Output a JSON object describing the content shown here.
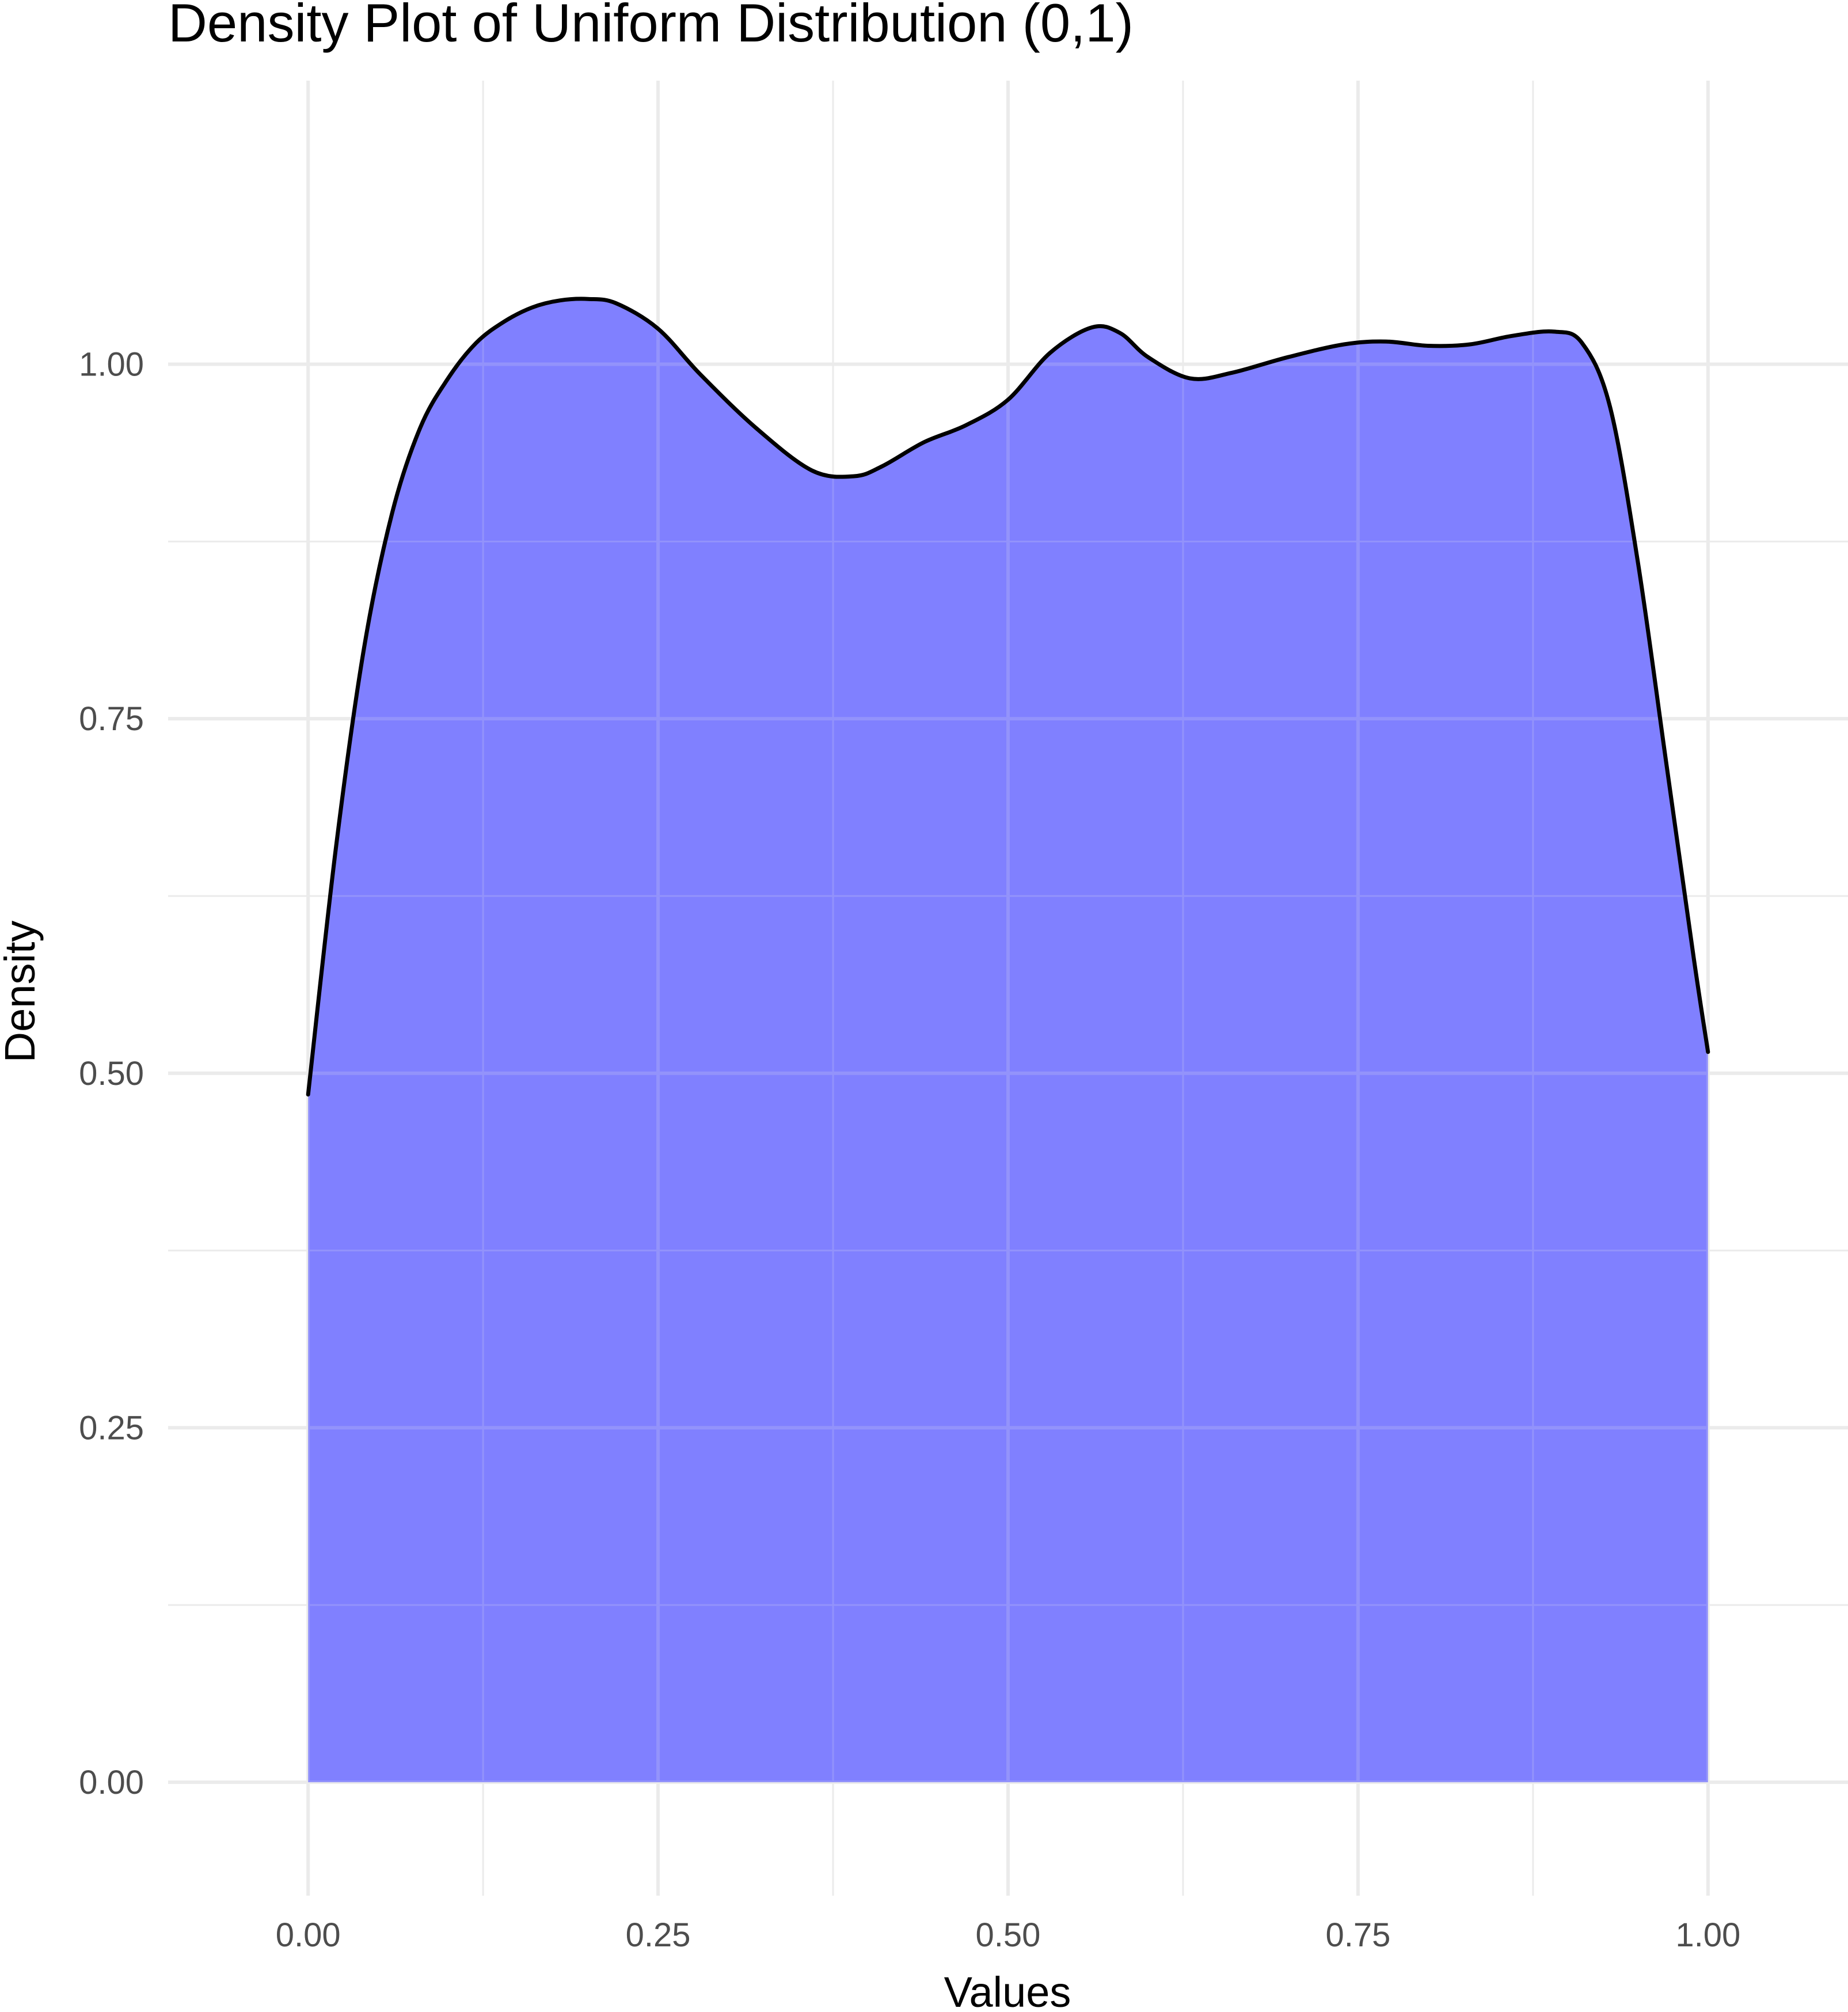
{
  "chart_data": {
    "type": "area",
    "title": "Density Plot of Uniform Distribution (0,1)",
    "xlabel": "Values",
    "ylabel": "Density",
    "xlim": [
      -0.1,
      1.1
    ],
    "ylim": [
      -0.08,
      1.2
    ],
    "x_ticks": [
      0.0,
      0.25,
      0.5,
      0.75,
      1.0
    ],
    "x_tick_labels": [
      "0.00",
      "0.25",
      "0.50",
      "0.75",
      "1.00"
    ],
    "y_ticks": [
      0.0,
      0.25,
      0.5,
      0.75,
      1.0
    ],
    "y_tick_labels": [
      "0.00",
      "0.25",
      "0.50",
      "0.75",
      "1.00"
    ],
    "grid": true,
    "fill_color": "#8080ff",
    "line_color": "#000000",
    "series": [
      {
        "x": [
          0.0,
          0.02,
          0.04,
          0.06,
          0.08,
          0.1,
          0.12,
          0.14,
          0.16,
          0.18,
          0.2,
          0.22,
          0.25,
          0.28,
          0.32,
          0.36,
          0.39,
          0.41,
          0.44,
          0.47,
          0.5,
          0.53,
          0.56,
          0.58,
          0.6,
          0.63,
          0.66,
          0.7,
          0.74,
          0.77,
          0.8,
          0.83,
          0.86,
          0.89,
          0.91,
          0.93,
          0.95,
          0.97,
          0.99,
          1.0
        ],
        "y": [
          0.485,
          0.66,
          0.8,
          0.895,
          0.955,
          0.99,
          1.015,
          1.03,
          1.04,
          1.045,
          1.046,
          1.043,
          1.025,
          0.993,
          0.955,
          0.925,
          0.921,
          0.928,
          0.945,
          0.957,
          0.975,
          1.008,
          1.026,
          1.022,
          1.005,
          0.99,
          0.994,
          1.005,
          1.014,
          1.016,
          1.013,
          1.014,
          1.02,
          1.023,
          1.015,
          0.97,
          0.86,
          0.72,
          0.58,
          0.515
        ]
      }
    ]
  }
}
